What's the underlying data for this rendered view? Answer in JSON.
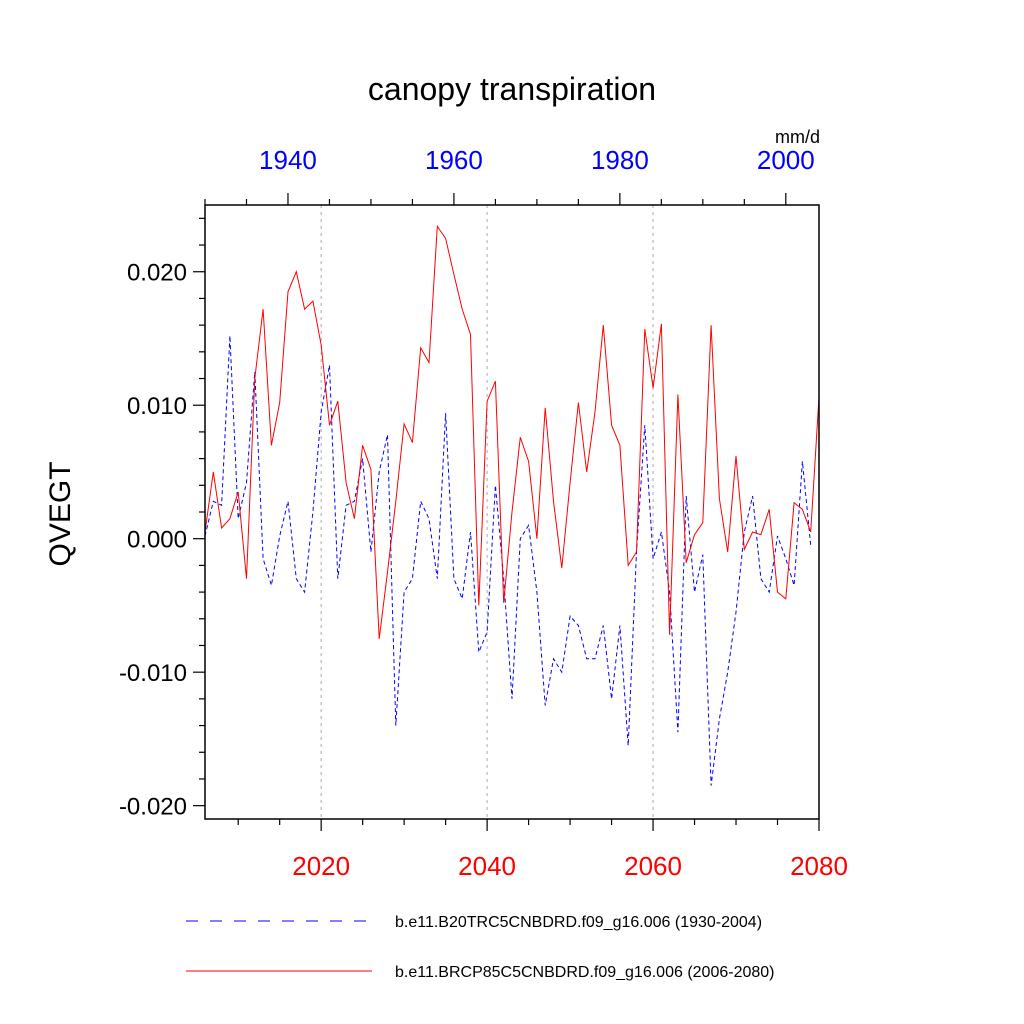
{
  "chart_data": {
    "type": "line",
    "title": "canopy transpiration",
    "units": "mm/d",
    "ylabel": "QVEGT",
    "ylim": [
      -0.021,
      0.025
    ],
    "yticks": [
      "0.020",
      "0.010",
      "0.000",
      "-0.010",
      "-0.020"
    ],
    "ytick_values": [
      0.02,
      0.01,
      0.0,
      -0.01,
      -0.02
    ],
    "top_axis": {
      "range": [
        1930,
        2004
      ],
      "ticks": [
        "1940",
        "1960",
        "1980",
        "2000"
      ],
      "tick_values": [
        1940,
        1960,
        1980,
        2000
      ],
      "color": "#0000ff"
    },
    "bottom_axis": {
      "range": [
        2006,
        2080
      ],
      "ticks": [
        "2020",
        "2040",
        "2060",
        "2080"
      ],
      "tick_values": [
        2020,
        2040,
        2060,
        2080
      ],
      "color": "#ff0000"
    },
    "vertical_gridlines_at": [
      2020,
      2040,
      2060
    ],
    "series": [
      {
        "name": "b.e11.B20TRC5CNBDRD.f09_g16.006 (1930-2004)",
        "color": "#0000ff",
        "style": "dashed",
        "axis": "top",
        "x_start": 1930,
        "values": [
          0.0002,
          0.0028,
          0.0025,
          0.0152,
          0.0015,
          0.0042,
          0.0125,
          -0.0015,
          -0.0035,
          0.0002,
          0.0028,
          -0.003,
          -0.004,
          0.002,
          0.0095,
          0.013,
          -0.003,
          0.0025,
          0.0028,
          0.006,
          -0.001,
          0.005,
          0.0078,
          -0.014,
          -0.004,
          -0.003,
          0.0028,
          0.0015,
          -0.003,
          0.0094,
          -0.003,
          -0.0045,
          0.0005,
          -0.0085,
          -0.007,
          0.004,
          -0.003,
          -0.012,
          0.0,
          0.001,
          -0.004,
          -0.0125,
          -0.009,
          -0.01,
          -0.0058,
          -0.0065,
          -0.009,
          -0.009,
          -0.0065,
          -0.012,
          -0.0065,
          -0.0155,
          -0.001,
          0.0085,
          -0.0015,
          0.0005,
          -0.004,
          -0.0145,
          0.0032,
          -0.004,
          -0.0012,
          -0.0185,
          -0.0135,
          -0.01,
          -0.0055,
          0.0005,
          0.0032,
          -0.003,
          -0.004,
          0.0002,
          -0.0015,
          -0.0035,
          0.0058,
          -0.0005
        ]
      },
      {
        "name": "b.e11.BRCP85C5CNBDRD.f09_g16.006 (2006-2080)",
        "color": "#ff0000",
        "style": "solid",
        "axis": "bottom",
        "x_start": 2006,
        "values": [
          0.0005,
          0.005,
          0.0008,
          0.0015,
          0.0035,
          -0.003,
          0.012,
          0.0172,
          0.007,
          0.0102,
          0.0185,
          0.02,
          0.0172,
          0.0178,
          0.0145,
          0.0085,
          0.0103,
          0.0042,
          0.0015,
          0.007,
          0.0052,
          -0.0075,
          -0.0025,
          0.0028,
          0.0086,
          0.0072,
          0.0143,
          0.0132,
          0.0234,
          0.0225,
          0.0198,
          0.0172,
          0.0153,
          -0.005,
          0.0103,
          0.0118,
          -0.0048,
          0.002,
          0.0076,
          0.0058,
          0.0,
          0.0098,
          0.0028,
          -0.0022,
          0.0042,
          0.0102,
          0.005,
          0.0095,
          0.016,
          0.0085,
          0.007,
          -0.002,
          -0.001,
          0.0157,
          0.0113,
          0.0161,
          -0.0072,
          0.0108,
          -0.0018,
          0.0003,
          0.0012,
          0.016,
          0.003,
          -0.001,
          0.0062,
          -0.0008,
          0.0005,
          0.0003,
          0.0022,
          -0.004,
          -0.0045,
          0.0027,
          0.0022,
          0.0005,
          0.0106
        ]
      }
    ]
  }
}
